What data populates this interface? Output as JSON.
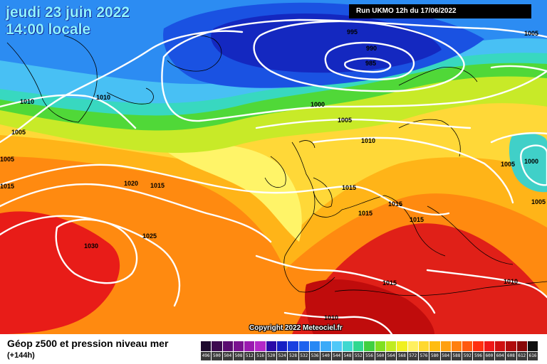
{
  "header": {
    "date": "jeudi 23 juin 2022",
    "time": "14:00 locale",
    "run": "Run UKMO 12h du 17/06/2022"
  },
  "copyright": "Copyright 2022 Meteociel.fr",
  "isobars": [
    {
      "label": "995"
    },
    {
      "label": "990"
    },
    {
      "label": "985"
    },
    {
      "label": "1005"
    },
    {
      "label": "1010"
    },
    {
      "label": "1010"
    },
    {
      "label": "1005"
    },
    {
      "label": "1000"
    },
    {
      "label": "1005"
    },
    {
      "label": "1010"
    },
    {
      "label": "1005"
    },
    {
      "label": "1015"
    },
    {
      "label": "1020"
    },
    {
      "label": "1015"
    },
    {
      "label": "1005"
    },
    {
      "label": "1000"
    },
    {
      "label": "1015"
    },
    {
      "label": "1015"
    },
    {
      "label": "1015"
    },
    {
      "label": "1015"
    },
    {
      "label": "1025"
    },
    {
      "label": "1030"
    },
    {
      "label": "1015"
    },
    {
      "label": "1010"
    },
    {
      "label": "1010"
    },
    {
      "label": "1005"
    }
  ],
  "legend": {
    "title": "Géop z500 et pression niveau mer",
    "subtitle": "(+144h)",
    "scale": [
      {
        "value": "496",
        "color": "#1e0a2e"
      },
      {
        "value": "500",
        "color": "#3c0a4e"
      },
      {
        "value": "504",
        "color": "#5a0c70"
      },
      {
        "value": "508",
        "color": "#7a1290"
      },
      {
        "value": "512",
        "color": "#9a1ab0"
      },
      {
        "value": "516",
        "color": "#b428c8"
      },
      {
        "value": "520",
        "color": "#2a0aa8"
      },
      {
        "value": "524",
        "color": "#1620c4"
      },
      {
        "value": "528",
        "color": "#1a40e0"
      },
      {
        "value": "532",
        "color": "#1e62ee"
      },
      {
        "value": "536",
        "color": "#2888f4"
      },
      {
        "value": "540",
        "color": "#3aaaf8"
      },
      {
        "value": "544",
        "color": "#50c8f8"
      },
      {
        "value": "548",
        "color": "#40d8d0"
      },
      {
        "value": "552",
        "color": "#30d890"
      },
      {
        "value": "556",
        "color": "#40d040"
      },
      {
        "value": "560",
        "color": "#80e020"
      },
      {
        "value": "564",
        "color": "#c0ec20"
      },
      {
        "value": "568",
        "color": "#f0f020"
      },
      {
        "value": "572",
        "color": "#fff060"
      },
      {
        "value": "576",
        "color": "#ffd830"
      },
      {
        "value": "580",
        "color": "#ffbc10"
      },
      {
        "value": "584",
        "color": "#ffa010"
      },
      {
        "value": "588",
        "color": "#ff8010"
      },
      {
        "value": "592",
        "color": "#ff5a10"
      },
      {
        "value": "596",
        "color": "#ff3010"
      },
      {
        "value": "600",
        "color": "#f01818"
      },
      {
        "value": "604",
        "color": "#d01010"
      },
      {
        "value": "608",
        "color": "#b00c0c"
      },
      {
        "value": "612",
        "color": "#880808"
      },
      {
        "value": "616",
        "color": "#101010"
      }
    ]
  }
}
